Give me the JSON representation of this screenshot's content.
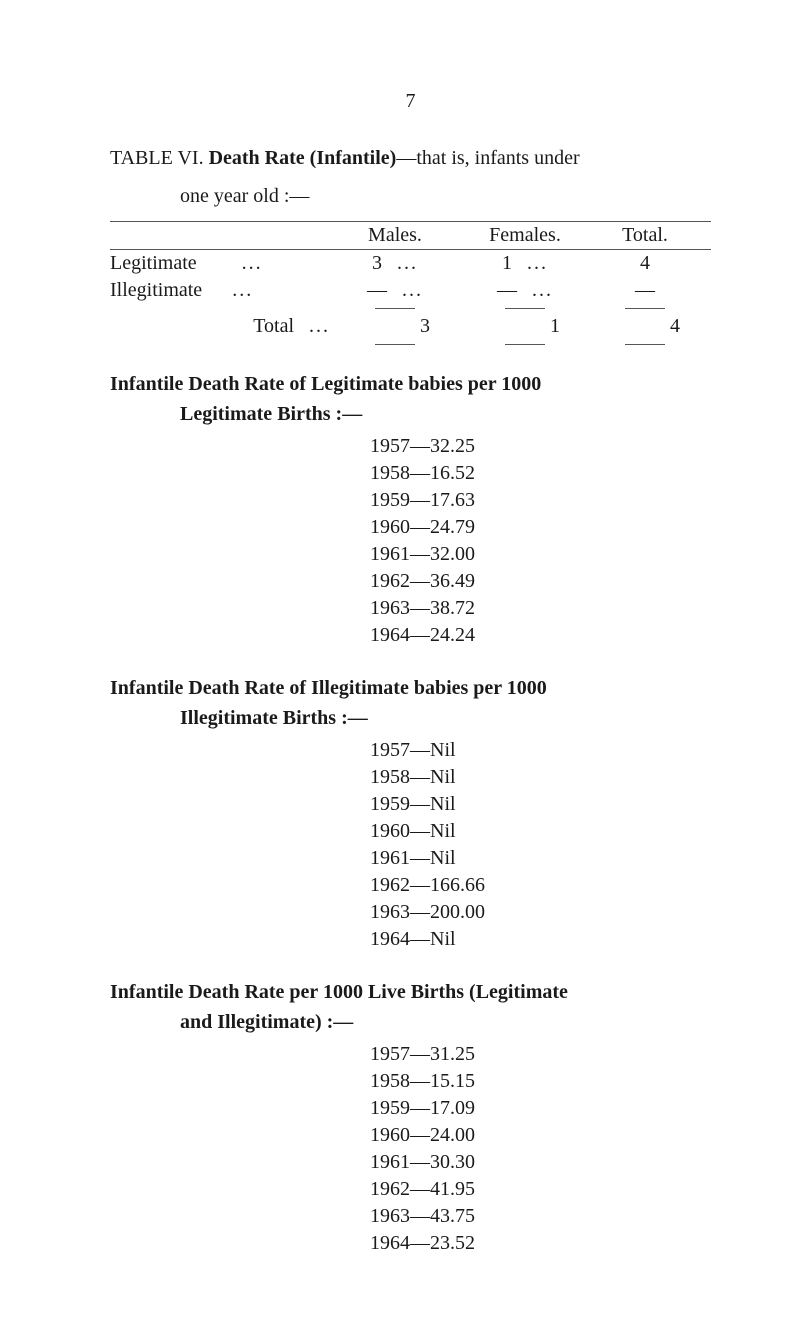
{
  "page_number": "7",
  "table_title_prefix": "TABLE VI.",
  "table_title_bold": "Death Rate (Infantile)",
  "table_title_rest": "—that is, infants under",
  "table_title_line2": "one year old :—",
  "headers": {
    "males": "Males.",
    "females": "Females.",
    "total": "Total."
  },
  "rows": [
    {
      "label": "Legitimate",
      "males": "3",
      "females": "1",
      "total": "4"
    },
    {
      "label": "Illegitimate",
      "males": "—",
      "females": "—",
      "total": "—"
    }
  ],
  "total_row": {
    "label": "Total",
    "males": "3",
    "females": "1",
    "total": "4"
  },
  "section1": {
    "title": "Infantile Death Rate of Legitimate babies per 1000",
    "sub": "Legitimate Births :—",
    "items": [
      "1957—32.25",
      "1958—16.52",
      "1959—17.63",
      "1960—24.79",
      "1961—32.00",
      "1962—36.49",
      "1963—38.72",
      "1964—24.24"
    ]
  },
  "section2": {
    "title": "Infantile Death Rate of Illegitimate babies per 1000",
    "sub": "Illegitimate Births :—",
    "items": [
      "1957—Nil",
      "1958—Nil",
      "1959—Nil",
      "1960—Nil",
      "1961—Nil",
      "1962—166.66",
      "1963—200.00",
      "1964—Nil"
    ]
  },
  "section3": {
    "title": "Infantile Death Rate per 1000 Live Births (Legitimate",
    "sub": "and Illegitimate) :—",
    "items": [
      "1957—31.25",
      "1958—15.15",
      "1959—17.09",
      "1960—24.00",
      "1961—30.30",
      "1962—41.95",
      "1963—43.75",
      "1964—23.52"
    ]
  }
}
